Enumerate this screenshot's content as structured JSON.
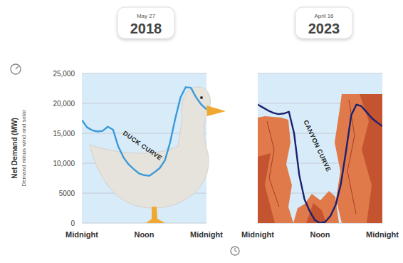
{
  "chart_data": [
    {
      "type": "line",
      "title": "2018",
      "subtitle": "May 27",
      "ylabel": "Net Demand (MW)",
      "ylabel_note": "Demand minus wind and solar",
      "annotations": [
        "DUCK CURVE"
      ],
      "x": [
        0,
        1,
        2,
        3,
        4,
        5,
        6,
        7,
        8,
        9,
        10,
        11,
        12,
        13,
        14,
        15,
        16,
        17,
        18,
        19,
        20,
        21,
        22,
        23,
        24
      ],
      "values": [
        17200,
        16000,
        15500,
        15300,
        15400,
        16100,
        15600,
        12800,
        11000,
        9800,
        9000,
        8300,
        8000,
        7900,
        8500,
        9200,
        10500,
        13500,
        17500,
        21000,
        22700,
        22600,
        21000,
        19800,
        19000
      ],
      "color": "#3b9ad9",
      "xlim": [
        0,
        24
      ],
      "xticks": [
        {
          "value": 0,
          "label": "Midnight"
        },
        {
          "value": 12,
          "label": "Noon"
        },
        {
          "value": 24,
          "label": "Midnight"
        }
      ],
      "ylim": [
        0,
        25000
      ],
      "yticks": [
        0,
        5000,
        {
          "value": 10000,
          "label": "10,000"
        },
        {
          "value": 15000,
          "label": "15,000"
        },
        {
          "value": 20000,
          "label": "20,000"
        },
        {
          "value": 25000,
          "label": "25,000"
        }
      ],
      "grid": true,
      "tick_labels": true
    },
    {
      "type": "line",
      "title": "2023",
      "subtitle": "April 16",
      "annotations": [
        "CANYON CURVE"
      ],
      "x": [
        0,
        1,
        2,
        3,
        4,
        5,
        6,
        7,
        8,
        9,
        10,
        11,
        12,
        13,
        14,
        15,
        16,
        17,
        18,
        19,
        20,
        21,
        22,
        23,
        24
      ],
      "values": [
        19800,
        19300,
        18800,
        18400,
        18200,
        18300,
        18600,
        15000,
        8000,
        4000,
        2000,
        500,
        0,
        200,
        1200,
        3000,
        6500,
        12000,
        18000,
        19800,
        19500,
        18500,
        17500,
        16800,
        16200
      ],
      "color": "#1b2170",
      "xlim": [
        0,
        24
      ],
      "xticks": [
        {
          "value": 0,
          "label": "Midnight"
        },
        {
          "value": 12,
          "label": "Noon"
        },
        {
          "value": 24,
          "label": "Midnight"
        }
      ],
      "ylim": [
        0,
        25000
      ],
      "yticks": [
        0,
        5000,
        {
          "value": 10000,
          "label": "10,000"
        },
        {
          "value": 15000,
          "label": "15,000"
        },
        {
          "value": 20000,
          "label": "20,000"
        },
        {
          "value": 25000,
          "label": "25,000"
        }
      ],
      "grid": true,
      "tick_labels": "x"
    }
  ]
}
